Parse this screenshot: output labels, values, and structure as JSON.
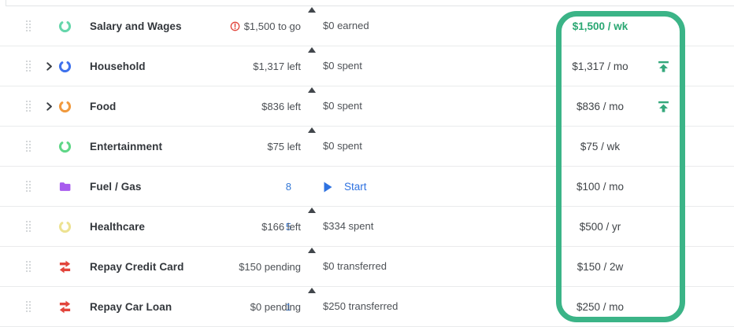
{
  "ui": {
    "highlight_border_color": "#3bb487",
    "bar_bg_color": "#dcdee1",
    "bar_fill_color": "#a9c5d8",
    "link_color": "#3478d6",
    "emphasis_color": "#29a772"
  },
  "rows": [
    {
      "name": "Salary and Wages",
      "icon": {
        "type": "ring",
        "color": "#66d6ab"
      },
      "has_chevron": false,
      "count": "-",
      "count_is_link": false,
      "bar": {
        "left_text": "$0 earned",
        "right_text": "$1,500 to go",
        "has_alert_icon": true,
        "fill_pct": 0,
        "marker_pct": 16
      },
      "budget": {
        "value": "$1,500 / wk",
        "emphasized": true,
        "has_increase_icon": false
      }
    },
    {
      "name": "Household",
      "icon": {
        "type": "ring",
        "color": "#3f72ec"
      },
      "has_chevron": true,
      "count": "-",
      "count_is_link": false,
      "bar": {
        "left_text": "$0 spent",
        "right_text": "$1,317 left",
        "has_alert_icon": false,
        "fill_pct": 0,
        "marker_pct": 13.5
      },
      "budget": {
        "value": "$1,317 / mo",
        "emphasized": false,
        "has_increase_icon": true
      }
    },
    {
      "name": "Food",
      "icon": {
        "type": "ring",
        "color": "#f09a3e"
      },
      "has_chevron": true,
      "count": "-",
      "count_is_link": false,
      "bar": {
        "left_text": "$0 spent",
        "right_text": "$836 left",
        "has_alert_icon": false,
        "fill_pct": 0,
        "marker_pct": 13.5
      },
      "budget": {
        "value": "$836 / mo",
        "emphasized": false,
        "has_increase_icon": true
      }
    },
    {
      "name": "Entertainment",
      "icon": {
        "type": "ring",
        "color": "#5fd687"
      },
      "has_chevron": false,
      "count": "-",
      "count_is_link": false,
      "bar": {
        "left_text": "$0 spent",
        "right_text": "$75 left",
        "has_alert_icon": false,
        "fill_pct": 0,
        "marker_pct": 0
      },
      "budget": {
        "value": "$75 / wk",
        "emphasized": false,
        "has_increase_icon": false
      }
    },
    {
      "name": "Fuel / Gas",
      "icon": {
        "type": "folder",
        "color": "#a75bee"
      },
      "has_chevron": false,
      "count": "8",
      "count_is_link": true,
      "bar": null,
      "start": {
        "label": "Start"
      },
      "budget": {
        "value": "$100 / mo",
        "emphasized": false,
        "has_increase_icon": false
      }
    },
    {
      "name": "Healthcare",
      "icon": {
        "type": "ring",
        "color": "#ede292"
      },
      "has_chevron": false,
      "count": "5",
      "count_is_link": true,
      "bar": {
        "left_text": "$334 spent",
        "right_text": "$166 left",
        "has_alert_icon": false,
        "fill_pct": 67,
        "marker_pct": 31
      },
      "budget": {
        "value": "$500 / yr",
        "emphasized": false,
        "has_increase_icon": false
      }
    },
    {
      "name": "Repay Credit Card",
      "icon": {
        "type": "transfer",
        "color": "#e2453c"
      },
      "has_chevron": false,
      "count": "-",
      "count_is_link": false,
      "bar": {
        "left_text": "$0 transferred",
        "right_text": "$150 pending",
        "has_alert_icon": false,
        "fill_pct": 0,
        "marker_pct": 29.5
      },
      "budget": {
        "value": "$150 / 2w",
        "emphasized": false,
        "has_increase_icon": false
      }
    },
    {
      "name": "Repay Car Loan",
      "icon": {
        "type": "transfer",
        "color": "#e2453c"
      },
      "has_chevron": false,
      "count": "1",
      "count_is_link": true,
      "bar": {
        "left_text": "$250 transferred",
        "right_text": "$0 pending",
        "has_alert_icon": false,
        "fill_pct": 100,
        "marker_pct": 80.5
      },
      "budget": {
        "value": "$250 / mo",
        "emphasized": false,
        "has_increase_icon": false
      }
    }
  ]
}
